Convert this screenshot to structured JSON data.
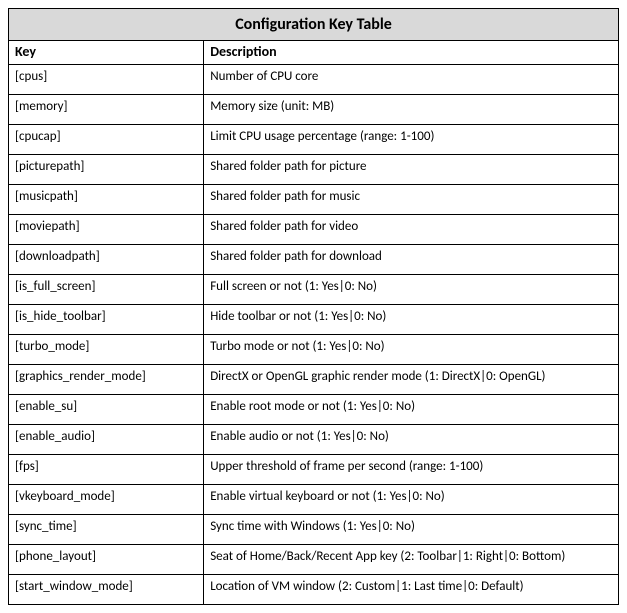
{
  "table": {
    "title": "Configuration Key Table",
    "columns": [
      "Key",
      "Description"
    ],
    "rows": [
      {
        "key": "[cpus]",
        "description": "Number of CPU core"
      },
      {
        "key": "[memory]",
        "description": "Memory size (unit: MB)"
      },
      {
        "key": "[cpucap]",
        "description": "Limit CPU usage percentage (range: 1-100)"
      },
      {
        "key": "[picturepath]",
        "description": "Shared folder path for picture"
      },
      {
        "key": "[musicpath]",
        "description": "Shared folder path for music"
      },
      {
        "key": "[moviepath]",
        "description": "Shared folder path for video"
      },
      {
        "key": "[downloadpath]",
        "description": "Shared folder path for download"
      },
      {
        "key": "[is_full_screen]",
        "description": "Full screen or not  (1: Yes|0: No)"
      },
      {
        "key": "[is_hide_toolbar]",
        "description": "Hide toolbar or not  (1: Yes|0: No)"
      },
      {
        "key": "[turbo_mode]",
        "description": "Turbo mode or not (1: Yes|0: No)"
      },
      {
        "key": "[graphics_render_mode]",
        "description": "DirectX or OpenGL graphic render mode (1: DirectX|0: OpenGL)"
      },
      {
        "key": "[enable_su]",
        "description": "Enable root mode or not (1: Yes|0: No)"
      },
      {
        "key": "[enable_audio]",
        "description": "Enable audio or not (1: Yes|0: No)"
      },
      {
        "key": "[fps]",
        "description": "Upper threshold of frame per second (range: 1-100)"
      },
      {
        "key": "[vkeyboard_mode]",
        "description": "Enable virtual keyboard or not (1: Yes|0: No)"
      },
      {
        "key": "[sync_time]",
        "description": "Sync time with Windows (1: Yes|0: No)"
      },
      {
        "key": "[phone_layout]",
        "description": "Seat of Home/Back/Recent App key (2: Toolbar|1: Right|0: Bottom)"
      },
      {
        "key": "[start_window_mode]",
        "description": "Location of VM window (2: Custom|1: Last time|0: Default)"
      }
    ],
    "style": {
      "title_background": "#d9d9d9",
      "border_color": "#000000",
      "background_color": "#ffffff",
      "text_color": "#000000",
      "title_fontsize": 16,
      "header_fontsize": 14,
      "cell_fontsize": 13,
      "key_col_width_pct": 32,
      "desc_col_width_pct": 68,
      "font_family": "Calibri"
    }
  }
}
